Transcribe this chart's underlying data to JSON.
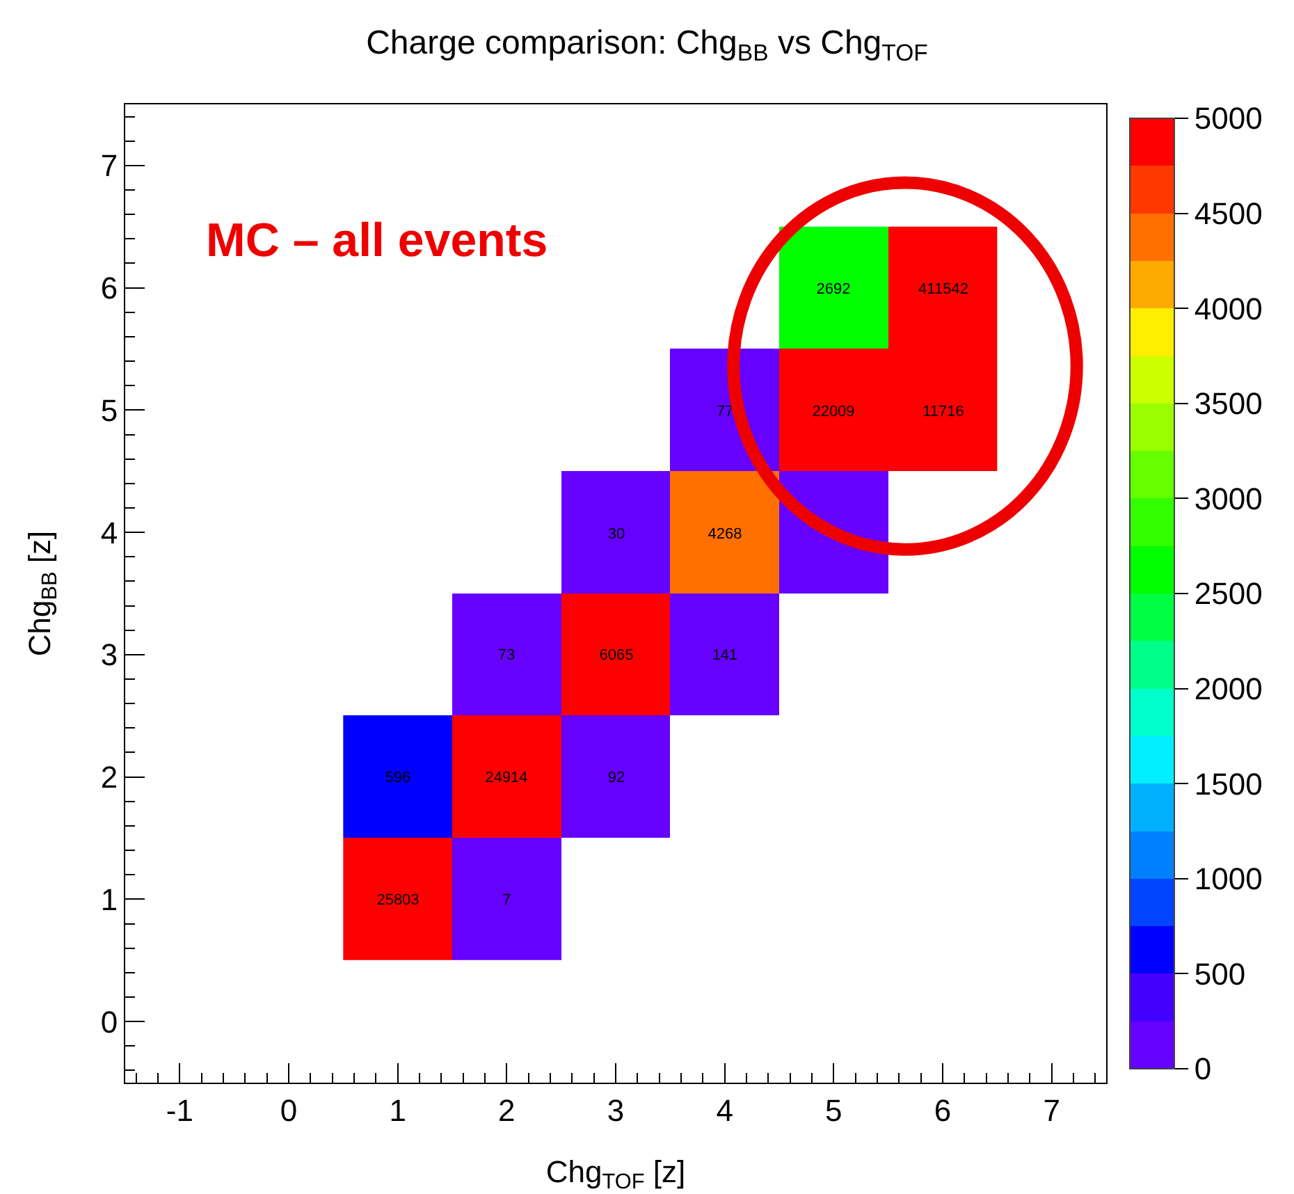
{
  "chart_data": {
    "type": "heatmap",
    "title": "Charge comparison: Chg$_{BB}$ vs Chg$_{TOF}$",
    "xlabel": "Chg$_{TOF}$ [z]",
    "ylabel": "Chg$_{BB}$ [z]",
    "annotations": [
      "MC – all events"
    ],
    "x": [
      1,
      2,
      3,
      4,
      5,
      6
    ],
    "y": [
      6,
      5,
      4,
      3,
      2,
      1
    ],
    "cells": [
      [
        null,
        null,
        null,
        null,
        2692,
        411542
      ],
      [
        null,
        null,
        null,
        77,
        22009,
        11716
      ],
      [
        null,
        null,
        30,
        4268,
        150,
        null
      ],
      [
        null,
        73,
        6065,
        141,
        null,
        null
      ],
      [
        596,
        24914,
        92,
        null,
        null,
        null
      ],
      [
        25803,
        7,
        null,
        null,
        null,
        null
      ]
    ],
    "cell_labels": [
      [
        null,
        null,
        null,
        null,
        "2692",
        "411542"
      ],
      [
        null,
        null,
        null,
        "77",
        "22009",
        "11716"
      ],
      [
        null,
        null,
        "30",
        "4268",
        null,
        null
      ],
      [
        null,
        "73",
        "6065",
        "141",
        null,
        null
      ],
      [
        "596",
        "24914",
        "92",
        null,
        null,
        null
      ],
      [
        "25803",
        "7",
        null,
        null,
        null,
        null
      ]
    ],
    "xlim": [
      -1.5,
      7.5
    ],
    "ylim": [
      -0.5,
      7.5
    ],
    "xticks": [
      -1,
      0,
      1,
      2,
      3,
      4,
      5,
      6,
      7
    ],
    "yticks": [
      0,
      1,
      2,
      3,
      4,
      5,
      6,
      7
    ],
    "clim": [
      0,
      5000
    ],
    "cticks": [
      0,
      500,
      1000,
      1500,
      2000,
      2500,
      3000,
      3500,
      4000,
      4500,
      5000
    ],
    "colors": [
      "#6600ff",
      "#4400ff",
      "#0000ff",
      "#0044ff",
      "#0080ff",
      "#00b0ff",
      "#00f0ff",
      "#00ffcc",
      "#00ff88",
      "#00ff44",
      "#00ff00",
      "#33ff00",
      "#66ff00",
      "#99ff00",
      "#ccff00",
      "#ffee00",
      "#ffaa00",
      "#ff7000",
      "#ff3800",
      "#ff0000"
    ],
    "grid": false
  }
}
